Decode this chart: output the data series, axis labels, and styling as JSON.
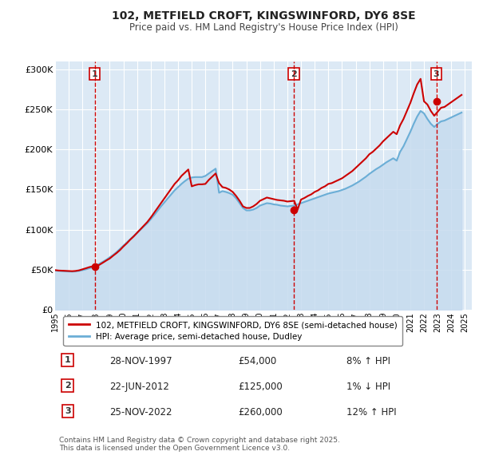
{
  "title": "102, METFIELD CROFT, KINGSWINFORD, DY6 8SE",
  "subtitle": "Price paid vs. HM Land Registry's House Price Index (HPI)",
  "background_color": "#ffffff",
  "chart_bg_color": "#dce9f5",
  "grid_color": "#ffffff",
  "ylim": [
    0,
    310000
  ],
  "xlim": [
    1995.0,
    2025.5
  ],
  "yticks": [
    0,
    50000,
    100000,
    150000,
    200000,
    250000,
    300000
  ],
  "ytick_labels": [
    "£0",
    "£50K",
    "£100K",
    "£150K",
    "£200K",
    "£250K",
    "£300K"
  ],
  "xticks": [
    1995,
    1996,
    1997,
    1998,
    1999,
    2000,
    2001,
    2002,
    2003,
    2004,
    2005,
    2006,
    2007,
    2008,
    2009,
    2010,
    2011,
    2012,
    2013,
    2014,
    2015,
    2016,
    2017,
    2018,
    2019,
    2020,
    2021,
    2022,
    2023,
    2024,
    2025
  ],
  "sale_dates": [
    1997.91,
    2012.47,
    2022.9
  ],
  "sale_prices": [
    54000,
    125000,
    260000
  ],
  "sale_labels": [
    "1",
    "2",
    "3"
  ],
  "vline_color": "#cc0000",
  "marker_color": "#cc0000",
  "red_line_color": "#cc0000",
  "blue_line_color": "#6baed6",
  "blue_fill_color": "#c6dbef",
  "legend_label_red": "102, METFIELD CROFT, KINGSWINFORD, DY6 8SE (semi-detached house)",
  "legend_label_blue": "HPI: Average price, semi-detached house, Dudley",
  "table_rows": [
    {
      "num": "1",
      "date": "28-NOV-1997",
      "price": "£54,000",
      "change": "8% ↑ HPI"
    },
    {
      "num": "2",
      "date": "22-JUN-2012",
      "price": "£125,000",
      "change": "1% ↓ HPI"
    },
    {
      "num": "3",
      "date": "25-NOV-2022",
      "price": "£260,000",
      "change": "12% ↑ HPI"
    }
  ],
  "footnote": "Contains HM Land Registry data © Crown copyright and database right 2025.\nThis data is licensed under the Open Government Licence v3.0.",
  "hpi_values": [
    49000,
    48500,
    48200,
    48000,
    47800,
    47600,
    47900,
    48500,
    49500,
    50500,
    51800,
    53000,
    55000,
    57500,
    60000,
    62500,
    65500,
    68500,
    72000,
    76000,
    80000,
    84000,
    88000,
    92000,
    96000,
    100000,
    104000,
    108000,
    113000,
    118000,
    123500,
    129000,
    134000,
    139000,
    144000,
    149000,
    153000,
    157000,
    160500,
    163500,
    165000,
    165500,
    165500,
    165500,
    167000,
    170000,
    173000,
    176000,
    146000,
    148000,
    147000,
    145500,
    143500,
    139000,
    133000,
    127000,
    124000,
    124000,
    125000,
    127000,
    130000,
    131500,
    133000,
    132500,
    131500,
    131000,
    130000,
    129500,
    129000,
    129500,
    130000,
    131500,
    133000,
    134500,
    136000,
    137500,
    139000,
    140500,
    142000,
    143500,
    145000,
    146000,
    147000,
    148000,
    149500,
    151000,
    153000,
    155000,
    157500,
    160000,
    163000,
    166000,
    169500,
    172500,
    175500,
    178000,
    181000,
    184000,
    186500,
    189000,
    186000,
    197000,
    204000,
    213000,
    222000,
    232000,
    241000,
    248000,
    245000,
    238000,
    232000,
    228000,
    232000,
    235000,
    236000,
    238000,
    240000,
    242000,
    244000,
    246000
  ],
  "red_values": [
    49500,
    49000,
    48800,
    48600,
    48400,
    48200,
    48500,
    49200,
    50500,
    51800,
    53200,
    54200,
    54000,
    56200,
    58800,
    61500,
    64000,
    67500,
    70800,
    74500,
    79000,
    83000,
    87500,
    91500,
    96000,
    100500,
    105000,
    109500,
    115000,
    121000,
    127000,
    133000,
    139000,
    145000,
    151000,
    157000,
    161500,
    167000,
    171000,
    175000,
    154000,
    155500,
    156500,
    156500,
    157000,
    162000,
    166000,
    170000,
    158000,
    153000,
    152000,
    150000,
    147000,
    142000,
    136000,
    129000,
    127000,
    127000,
    129000,
    132000,
    136000,
    138000,
    140000,
    139000,
    138000,
    137000,
    136500,
    136000,
    135000,
    135500,
    136000,
    125000,
    137500,
    139500,
    142000,
    144000,
    147000,
    149000,
    152000,
    154000,
    157000,
    158000,
    160000,
    162000,
    164000,
    167000,
    170000,
    173000,
    177000,
    181000,
    185000,
    189000,
    194000,
    197000,
    201000,
    205000,
    210000,
    214000,
    218000,
    222000,
    219000,
    230000,
    238000,
    248000,
    258000,
    270000,
    281000,
    288000,
    260000,
    256000,
    248000,
    242000,
    247000,
    252000,
    253000,
    256000,
    259000,
    262000,
    265000,
    268000
  ]
}
